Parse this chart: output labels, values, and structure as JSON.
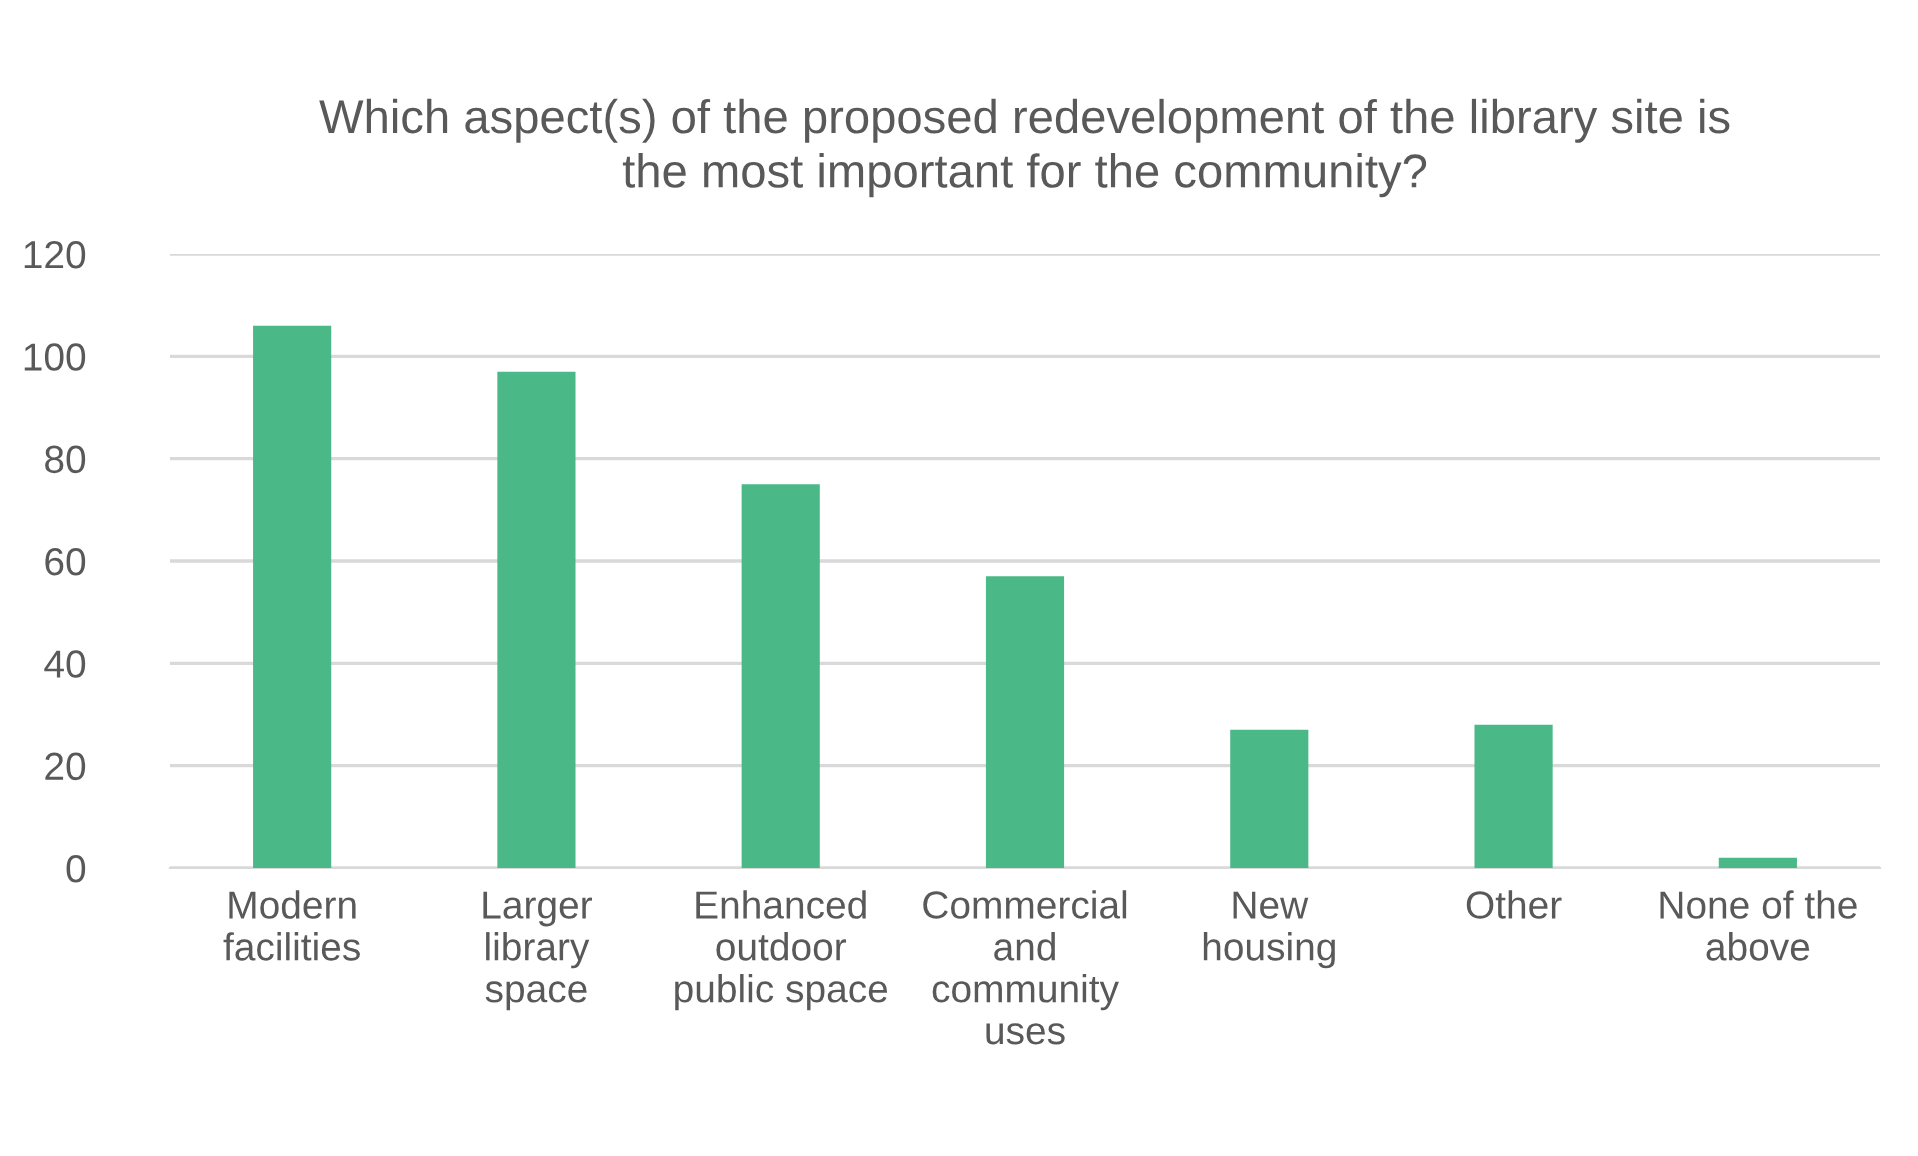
{
  "chart_data": {
    "type": "bar",
    "title": "Which aspect(s) of the proposed redevelopment of the library site is\nthe most important for the community?",
    "categories": [
      "Modern\nfacilities",
      "Larger\nlibrary\nspace",
      "Enhanced\noutdoor\npublic space",
      "Commercial\nand\ncommunity\nuses",
      "New\nhousing",
      "Other",
      "None of the\nabove"
    ],
    "values": [
      106,
      97,
      75,
      57,
      27,
      28,
      2
    ],
    "color": "#4bb887",
    "ylim": [
      0,
      120
    ],
    "yticks": [
      0,
      20,
      40,
      60,
      80,
      100,
      120
    ],
    "grid": "y"
  }
}
